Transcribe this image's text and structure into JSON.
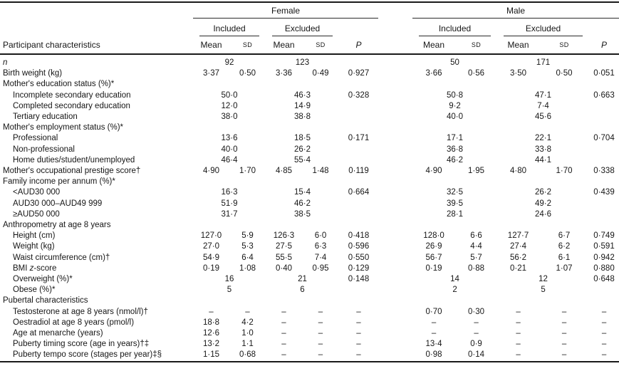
{
  "table": {
    "col_label_header": "Participant characteristics",
    "groups": {
      "female": "Female",
      "male": "Male"
    },
    "subgroups": {
      "included": "Included",
      "excluded": "Excluded"
    },
    "stat_headers": {
      "mean": "Mean",
      "sd": "SD",
      "p": "P"
    },
    "rows": [
      {
        "label": "n",
        "italic": true,
        "type": "span",
        "v": [
          "92",
          "123",
          "",
          "50",
          "171",
          ""
        ]
      },
      {
        "label": "Birth weight (kg)",
        "type": "full",
        "v": [
          "3·37",
          "0·50",
          "3·36",
          "0·49",
          "0·927",
          "3·66",
          "0·56",
          "3·50",
          "0·50",
          "0·051"
        ]
      },
      {
        "label": "Mother's education status (%)*",
        "type": "section"
      },
      {
        "label": "Incomplete secondary education",
        "indent": true,
        "type": "span",
        "v": [
          "50·0",
          "46·3",
          "0·328",
          "50·8",
          "47·1",
          "0·663"
        ]
      },
      {
        "label": "Completed secondary education",
        "indent": true,
        "type": "span",
        "v": [
          "12·0",
          "14·9",
          "",
          "9·2",
          "7·4",
          ""
        ]
      },
      {
        "label": "Tertiary education",
        "indent": true,
        "type": "span",
        "v": [
          "38·0",
          "38·8",
          "",
          "40·0",
          "45·6",
          ""
        ]
      },
      {
        "label": "Mother's employment status (%)*",
        "type": "section"
      },
      {
        "label": "Professional",
        "indent": true,
        "type": "span",
        "v": [
          "13·6",
          "18·5",
          "0·171",
          "17·1",
          "22·1",
          "0·704"
        ]
      },
      {
        "label": "Non-professional",
        "indent": true,
        "type": "span",
        "v": [
          "40·0",
          "26·2",
          "",
          "36·8",
          "33·8",
          ""
        ]
      },
      {
        "label": "Home duties/student/unemployed",
        "indent": true,
        "type": "span",
        "v": [
          "46·4",
          "55·4",
          "",
          "46·2",
          "44·1",
          ""
        ]
      },
      {
        "label": "Mother's occupational prestige score†",
        "type": "full",
        "v": [
          "4·90",
          "1·70",
          "4·85",
          "1·48",
          "0·119",
          "4·90",
          "1·95",
          "4·80",
          "1·70",
          "0·338"
        ]
      },
      {
        "label": "Family income per annum (%)*",
        "type": "section"
      },
      {
        "label": "<AUD30 000",
        "indent": true,
        "type": "span",
        "v": [
          "16·3",
          "15·4",
          "0·664",
          "32·5",
          "26·2",
          "0·439"
        ]
      },
      {
        "label": "AUD30 000–AUD49 999",
        "indent": true,
        "type": "span",
        "v": [
          "51·9",
          "46·2",
          "",
          "39·5",
          "49·2",
          ""
        ]
      },
      {
        "label": "≥AUD50 000",
        "indent": true,
        "type": "span",
        "v": [
          "31·7",
          "38·5",
          "",
          "28·1",
          "24·6",
          ""
        ]
      },
      {
        "label": "Anthropometry at age 8 years",
        "type": "section"
      },
      {
        "label": "Height (cm)",
        "indent": true,
        "type": "full",
        "v": [
          "127·0",
          "5·9",
          "126·3",
          "6·0",
          "0·418",
          "128·0",
          "6·6",
          "127·7",
          "6·7",
          "0·749"
        ]
      },
      {
        "label": "Weight (kg)",
        "indent": true,
        "type": "full",
        "v": [
          "27·0",
          "5·3",
          "27·5",
          "6·3",
          "0·596",
          "26·9",
          "4·4",
          "27·4",
          "6·2",
          "0·591"
        ]
      },
      {
        "label": "Waist circumference (cm)†",
        "indent": true,
        "type": "full",
        "v": [
          "54·9",
          "6·4",
          "55·5",
          "7·4",
          "0·550",
          "56·7",
          "5·7",
          "56·2",
          "6·1",
          "0·942"
        ]
      },
      {
        "label": "BMI z-score",
        "indent": true,
        "type": "full",
        "parts": [
          {
            "t": "BMI ",
            "i": false
          },
          {
            "t": "z",
            "i": true
          },
          {
            "t": "-score",
            "i": false
          }
        ],
        "v": [
          "0·19",
          "1·08",
          "0·40",
          "0·95",
          "0·129",
          "0·19",
          "0·88",
          "0·21",
          "1·07",
          "0·880"
        ]
      },
      {
        "label": "Overweight (%)*",
        "indent": true,
        "type": "span",
        "v": [
          "16",
          "21",
          "0·148",
          "14",
          "12",
          "0·648"
        ]
      },
      {
        "label": "Obese (%)*",
        "indent": true,
        "type": "span",
        "v": [
          "5",
          "6",
          "",
          "2",
          "5",
          ""
        ]
      },
      {
        "label": "Pubertal characteristics",
        "type": "section"
      },
      {
        "label": "Testosterone at age 8 years (nmol/l)†",
        "indent": true,
        "type": "full",
        "v": [
          "–",
          "–",
          "–",
          "–",
          "–",
          "0·70",
          "0·30",
          "–",
          "–",
          "–"
        ]
      },
      {
        "label": "Oestradiol at age 8 years (pmol/l)",
        "indent": true,
        "type": "full",
        "v": [
          "18·8",
          "4·2",
          "–",
          "–",
          "–",
          "–",
          "–",
          "–",
          "–",
          "–"
        ]
      },
      {
        "label": "Age at menarche (years)",
        "indent": true,
        "type": "full",
        "v": [
          "12·6",
          "1·0",
          "–",
          "–",
          "–",
          "–",
          "–",
          "–",
          "–",
          "–"
        ]
      },
      {
        "label": "Puberty timing score (age in years)†‡",
        "indent": true,
        "type": "full",
        "v": [
          "13·2",
          "1·1",
          "–",
          "–",
          "–",
          "13·4",
          "0·9",
          "–",
          "–",
          "–"
        ]
      },
      {
        "label": "Puberty tempo score (stages per year)‡§",
        "indent": true,
        "type": "full",
        "v": [
          "1·15",
          "0·68",
          "–",
          "–",
          "–",
          "0·98",
          "0·14",
          "–",
          "–",
          "–"
        ]
      }
    ]
  }
}
